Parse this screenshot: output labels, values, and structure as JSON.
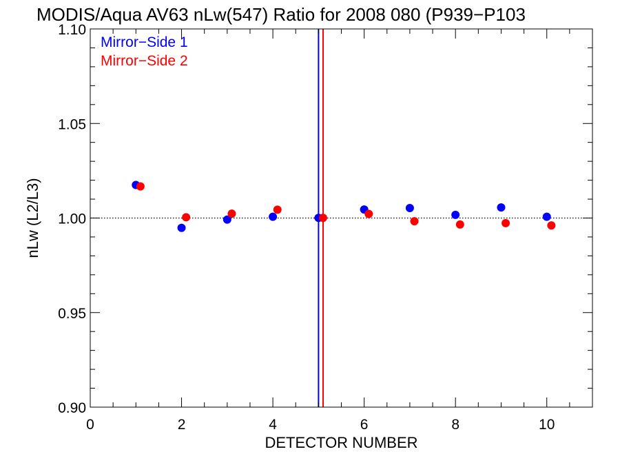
{
  "chart_data": {
    "type": "scatter",
    "title": "MODIS/Aqua AV63 nLw(547) Ratio for 2008 080 (P939−P103",
    "xlabel": "DETECTOR NUMBER",
    "ylabel": "nLw (L2/L3)",
    "xlim": [
      0,
      11
    ],
    "ylim": [
      0.9,
      1.1
    ],
    "x_ticks": [
      0,
      2,
      4,
      6,
      8,
      10
    ],
    "x_tick_labels": [
      "0",
      "2",
      "4",
      "6",
      "8",
      "10"
    ],
    "y_ticks": [
      0.9,
      0.95,
      1.0,
      1.05,
      1.1
    ],
    "y_tick_labels": [
      "0.90",
      "0.95",
      "1.00",
      "1.05",
      "1.10"
    ],
    "grid": false,
    "legend_position": "top-left",
    "reference_line": {
      "y": 1.0,
      "style": "dotted",
      "color": "#000000"
    },
    "series": [
      {
        "name": "Mirror−Side 1",
        "color": "#0000ff",
        "x": [
          1,
          2,
          3,
          4,
          5,
          6,
          7,
          8,
          9,
          10
        ],
        "y": [
          1.0175,
          0.9948,
          0.9992,
          1.0007,
          1.0001,
          1.0045,
          1.0053,
          1.0017,
          1.0056,
          1.0007
        ],
        "vertical_line_x": 5.0
      },
      {
        "name": "Mirror−Side 2",
        "color": "#ff0000",
        "x": [
          1.1,
          2.1,
          3.1,
          4.1,
          5.1,
          6.1,
          7.1,
          8.1,
          9.1,
          10.1
        ],
        "y": [
          1.0167,
          1.0004,
          1.0023,
          1.0044,
          1.0001,
          1.0022,
          0.9983,
          0.9966,
          0.9973,
          0.9961
        ],
        "vertical_line_x": 5.1
      }
    ]
  }
}
